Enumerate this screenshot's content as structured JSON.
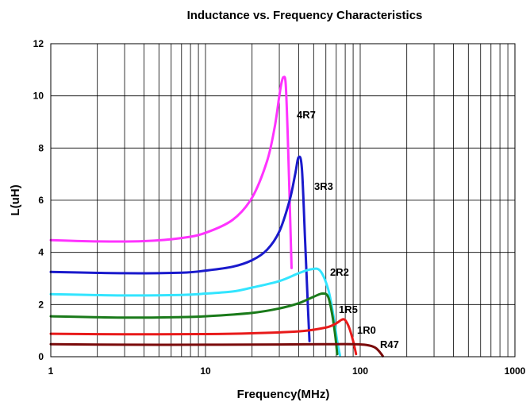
{
  "chart_data": {
    "type": "line",
    "title": "Inductance vs. Frequency Characteristics",
    "xlabel": "Frequency(MHz)",
    "ylabel": "L(uH)",
    "x_scale": "log",
    "xlim": [
      1,
      1000
    ],
    "ylim": [
      0,
      12
    ],
    "x_ticks": [
      "1",
      "10",
      "100",
      "1000"
    ],
    "y_ticks": [
      "0",
      "2",
      "4",
      "6",
      "8",
      "10",
      "12"
    ],
    "grid": true,
    "series": [
      {
        "name": "4R7",
        "color": "#ff33ff",
        "points": [
          [
            1,
            4.47
          ],
          [
            2,
            4.42
          ],
          [
            4,
            4.43
          ],
          [
            7,
            4.55
          ],
          [
            10,
            4.75
          ],
          [
            15,
            5.25
          ],
          [
            20,
            6.1
          ],
          [
            25,
            7.5
          ],
          [
            28,
            8.8
          ],
          [
            30,
            10.0
          ],
          [
            31,
            10.5
          ],
          [
            32,
            10.72
          ],
          [
            33,
            10.45
          ],
          [
            34,
            8.5
          ],
          [
            35,
            6.0
          ],
          [
            36,
            3.4
          ]
        ]
      },
      {
        "name": "3R3",
        "color": "#1a1acc",
        "points": [
          [
            1,
            3.25
          ],
          [
            3,
            3.2
          ],
          [
            7,
            3.22
          ],
          [
            10,
            3.3
          ],
          [
            15,
            3.45
          ],
          [
            20,
            3.7
          ],
          [
            25,
            4.1
          ],
          [
            30,
            4.8
          ],
          [
            35,
            6.0
          ],
          [
            38,
            7.0
          ],
          [
            40,
            7.65
          ],
          [
            42,
            7.2
          ],
          [
            44,
            4.5
          ],
          [
            46,
            1.8
          ],
          [
            47,
            0.6
          ]
        ]
      },
      {
        "name": "2R2",
        "color": "#33e5ff",
        "points": [
          [
            1,
            2.4
          ],
          [
            3,
            2.35
          ],
          [
            7,
            2.37
          ],
          [
            10,
            2.42
          ],
          [
            15,
            2.5
          ],
          [
            20,
            2.65
          ],
          [
            30,
            2.9
          ],
          [
            40,
            3.2
          ],
          [
            48,
            3.35
          ],
          [
            55,
            3.3
          ],
          [
            62,
            2.6
          ],
          [
            67,
            1.6
          ],
          [
            71,
            0.6
          ],
          [
            74,
            0.05
          ]
        ]
      },
      {
        "name": "1R5",
        "color": "#1a7a1a",
        "points": [
          [
            1,
            1.55
          ],
          [
            3,
            1.5
          ],
          [
            7,
            1.52
          ],
          [
            10,
            1.55
          ],
          [
            20,
            1.68
          ],
          [
            30,
            1.85
          ],
          [
            40,
            2.05
          ],
          [
            50,
            2.3
          ],
          [
            57,
            2.42
          ],
          [
            62,
            2.3
          ],
          [
            66,
            1.6
          ],
          [
            69,
            0.8
          ],
          [
            71,
            0.1
          ]
        ]
      },
      {
        "name": "1R0",
        "color": "#e81a1a",
        "points": [
          [
            1,
            0.88
          ],
          [
            3,
            0.86
          ],
          [
            10,
            0.87
          ],
          [
            20,
            0.9
          ],
          [
            40,
            0.97
          ],
          [
            60,
            1.12
          ],
          [
            70,
            1.28
          ],
          [
            76,
            1.42
          ],
          [
            80,
            1.4
          ],
          [
            85,
            1.1
          ],
          [
            90,
            0.6
          ],
          [
            94,
            0.1
          ]
        ]
      },
      {
        "name": "R47",
        "color": "#7a0a0a",
        "points": [
          [
            1,
            0.48
          ],
          [
            3,
            0.46
          ],
          [
            10,
            0.46
          ],
          [
            30,
            0.47
          ],
          [
            60,
            0.48
          ],
          [
            90,
            0.48
          ],
          [
            110,
            0.45
          ],
          [
            125,
            0.35
          ],
          [
            135,
            0.15
          ],
          [
            140,
            0.02
          ]
        ]
      }
    ]
  }
}
